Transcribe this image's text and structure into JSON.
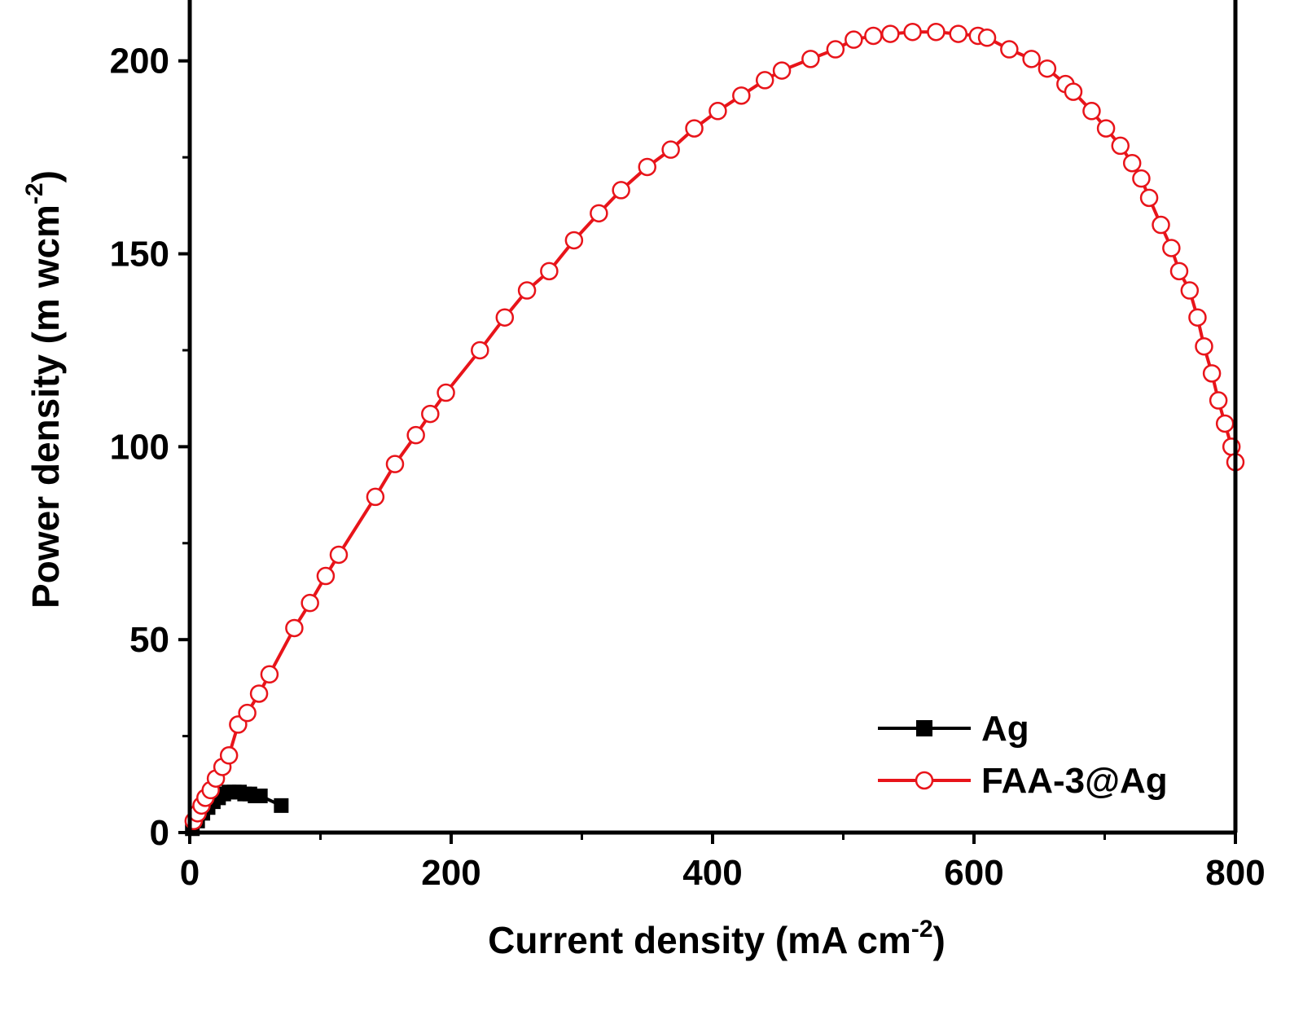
{
  "chart_data": {
    "type": "scatter",
    "xlabel": "Current density (mA cm",
    "xlabel_sup": "-2",
    "xlabel_end": ")",
    "ylabel": "Power density (m wcm",
    "ylabel_sup": "-2",
    "ylabel_end": ")",
    "xlim": [
      0,
      800
    ],
    "ylim": [
      0,
      220
    ],
    "x_ticks": [
      0,
      200,
      400,
      600,
      800
    ],
    "y_ticks": [
      0,
      50,
      100,
      150,
      200
    ],
    "grid": false,
    "legend_position": "bottom-right",
    "series": [
      {
        "name": "Ag",
        "color": "#000000",
        "marker": "filled-square",
        "x": [
          2,
          6,
          10,
          14,
          18,
          22,
          26,
          30,
          34,
          38,
          42,
          46,
          50,
          54,
          70
        ],
        "y": [
          1,
          3,
          5,
          6.5,
          8,
          9,
          10,
          10.5,
          10.5,
          10.5,
          10,
          10,
          9.5,
          9.5,
          7
        ]
      },
      {
        "name": "FAA-3@Ag",
        "color": "#e8141a",
        "marker": "open-circle",
        "x": [
          3,
          6,
          9,
          12,
          16,
          20,
          25,
          30,
          37,
          44,
          53,
          61,
          80,
          92,
          104,
          114,
          142,
          157,
          173,
          184,
          196,
          222,
          241,
          258,
          275,
          294,
          313,
          330,
          350,
          368,
          386,
          404,
          422,
          440,
          453,
          475,
          494,
          508,
          523,
          536,
          553,
          571,
          588,
          603,
          610,
          627,
          644,
          656,
          670,
          676,
          690,
          701,
          712,
          721,
          728,
          734,
          743,
          751,
          757,
          765,
          771,
          776,
          782,
          787,
          792,
          797,
          800
        ],
        "y": [
          3,
          5,
          7,
          9,
          11,
          14,
          17,
          20,
          28,
          31,
          36,
          41,
          53,
          59.5,
          66.5,
          72,
          87,
          95.5,
          103,
          108.5,
          114,
          125,
          133.5,
          140.5,
          145.5,
          153.5,
          160.5,
          166.5,
          172.5,
          177,
          182.5,
          187,
          191,
          195,
          197.5,
          200.5,
          203,
          205.5,
          206.5,
          207,
          207.5,
          207.5,
          207,
          206.5,
          206,
          203,
          200.5,
          198,
          194,
          192,
          187,
          182.5,
          178,
          173.5,
          169.5,
          164.5,
          157.5,
          151.5,
          145.5,
          140.5,
          133.5,
          126,
          119,
          112,
          106,
          100,
          96
        ]
      }
    ]
  }
}
